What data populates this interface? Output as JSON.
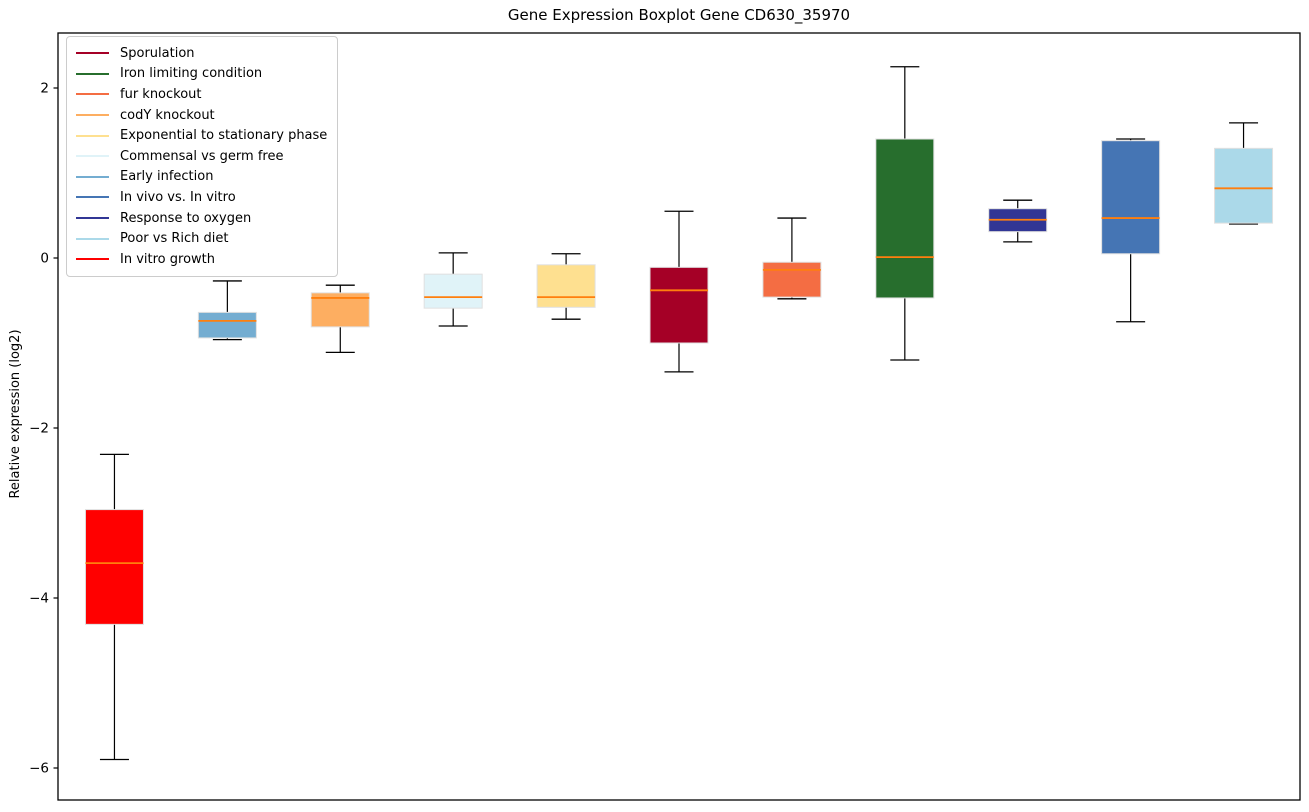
{
  "title": "Gene Expression Boxplot Gene CD630_35970",
  "ylabel": "Relative expression (log2)",
  "chart_data": {
    "type": "box",
    "title": "Gene Expression Boxplot Gene CD630_35970",
    "xlabel": "",
    "ylabel": "Relative expression (log2)",
    "ylim": [
      -6.38,
      2.65
    ],
    "grid": false,
    "legend_position": "upper left",
    "median_color": "#ff7f0e",
    "whisker_color": "#000000",
    "box_edge_color": "#e0e0e0",
    "yticks": [
      {
        "value": 2,
        "label": "2"
      },
      {
        "value": 0,
        "label": "0"
      },
      {
        "value": -2,
        "label": "−2"
      },
      {
        "value": -4,
        "label": "−4"
      },
      {
        "value": -6,
        "label": "−6"
      }
    ],
    "boxes": [
      {
        "label": "In vitro growth",
        "color": "#ff0000",
        "whislo": -5.9,
        "q1": -4.31,
        "med": -3.59,
        "q3": -2.96,
        "whishi": -2.31
      },
      {
        "label": "Early infection",
        "color": "#74add1",
        "whislo": -0.96,
        "q1": -0.94,
        "med": -0.74,
        "q3": -0.64,
        "whishi": -0.27
      },
      {
        "label": "codY knockout",
        "color": "#fdae61",
        "whislo": -1.11,
        "q1": -0.81,
        "med": -0.47,
        "q3": -0.41,
        "whishi": -0.32
      },
      {
        "label": "Commensal vs germ free",
        "color": "#e0f3f8",
        "whislo": -0.8,
        "q1": -0.59,
        "med": -0.46,
        "q3": -0.19,
        "whishi": 0.06
      },
      {
        "label": "Exponential to stationary phase",
        "color": "#fee090",
        "whislo": -0.72,
        "q1": -0.58,
        "med": -0.46,
        "q3": -0.08,
        "whishi": 0.05
      },
      {
        "label": "Sporulation",
        "color": "#a50026",
        "whislo": -1.34,
        "q1": -1.0,
        "med": -0.38,
        "q3": -0.11,
        "whishi": 0.55
      },
      {
        "label": "fur knockout",
        "color": "#f46d43",
        "whislo": -0.48,
        "q1": -0.46,
        "med": -0.14,
        "q3": -0.05,
        "whishi": 0.47
      },
      {
        "label": "Iron limiting condition",
        "color": "#276e2d",
        "whislo": -1.2,
        "q1": -0.47,
        "med": 0.01,
        "q3": 1.4,
        "whishi": 2.25
      },
      {
        "label": "Response to oxygen",
        "color": "#313695",
        "whislo": 0.19,
        "q1": 0.31,
        "med": 0.45,
        "q3": 0.58,
        "whishi": 0.68
      },
      {
        "label": "In vivo vs. In vitro",
        "color": "#4575b4",
        "whislo": -0.75,
        "q1": 0.05,
        "med": 0.47,
        "q3": 1.38,
        "whishi": 1.4
      },
      {
        "label": "Poor vs Rich diet",
        "color": "#abd9e9",
        "whislo": 0.4,
        "q1": 0.41,
        "med": 0.82,
        "q3": 1.29,
        "whishi": 1.59
      }
    ],
    "legend": [
      {
        "label": "Sporulation",
        "color": "#a50026"
      },
      {
        "label": "Iron limiting condition",
        "color": "#276e2d"
      },
      {
        "label": "fur knockout",
        "color": "#f46d43"
      },
      {
        "label": "codY knockout",
        "color": "#fdae61"
      },
      {
        "label": "Exponential to stationary phase",
        "color": "#fee090"
      },
      {
        "label": "Commensal vs germ free",
        "color": "#e0f3f8"
      },
      {
        "label": "Early infection",
        "color": "#74add1"
      },
      {
        "label": "In vivo vs. In vitro",
        "color": "#4575b4"
      },
      {
        "label": "Response to oxygen",
        "color": "#313695"
      },
      {
        "label": "Poor vs Rich diet",
        "color": "#abd9e9"
      },
      {
        "label": "In vitro growth",
        "color": "#ff0000"
      }
    ]
  }
}
